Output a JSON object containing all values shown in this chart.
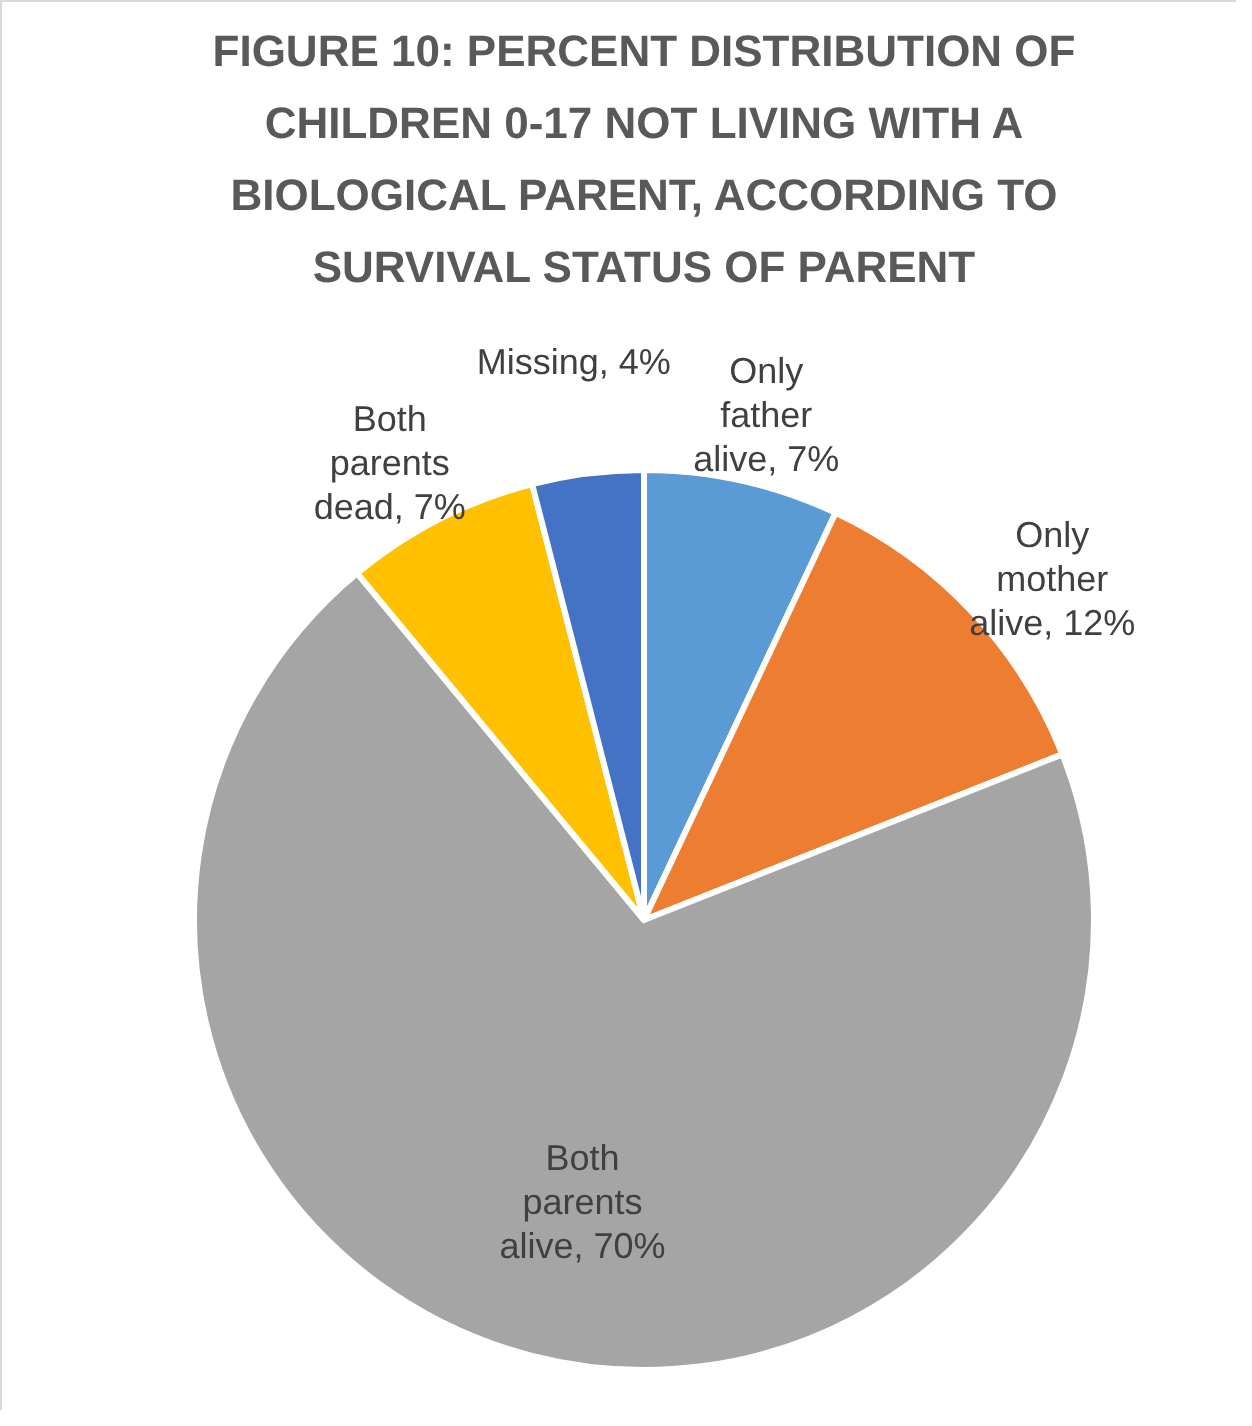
{
  "chart_data": {
    "type": "pie",
    "title": "FIGURE 10: PERCENT DISTRIBUTION OF CHILDREN 0-17 NOT LIVING WITH A BIOLOGICAL PARENT, ACCORDING TO SURVIVAL STATUS OF PARENT",
    "categories": [
      "Only father alive",
      "Only mother alive",
      "Both parents alive",
      "Both parents dead",
      "Missing"
    ],
    "values": [
      7,
      12,
      70,
      7,
      4
    ],
    "colors": [
      "#5b9bd5",
      "#ed7d31",
      "#a5a5a5",
      "#ffc000",
      "#4472c4"
    ],
    "value_labels": [
      "7%",
      "12%",
      "70%",
      "7%",
      "4%"
    ]
  }
}
